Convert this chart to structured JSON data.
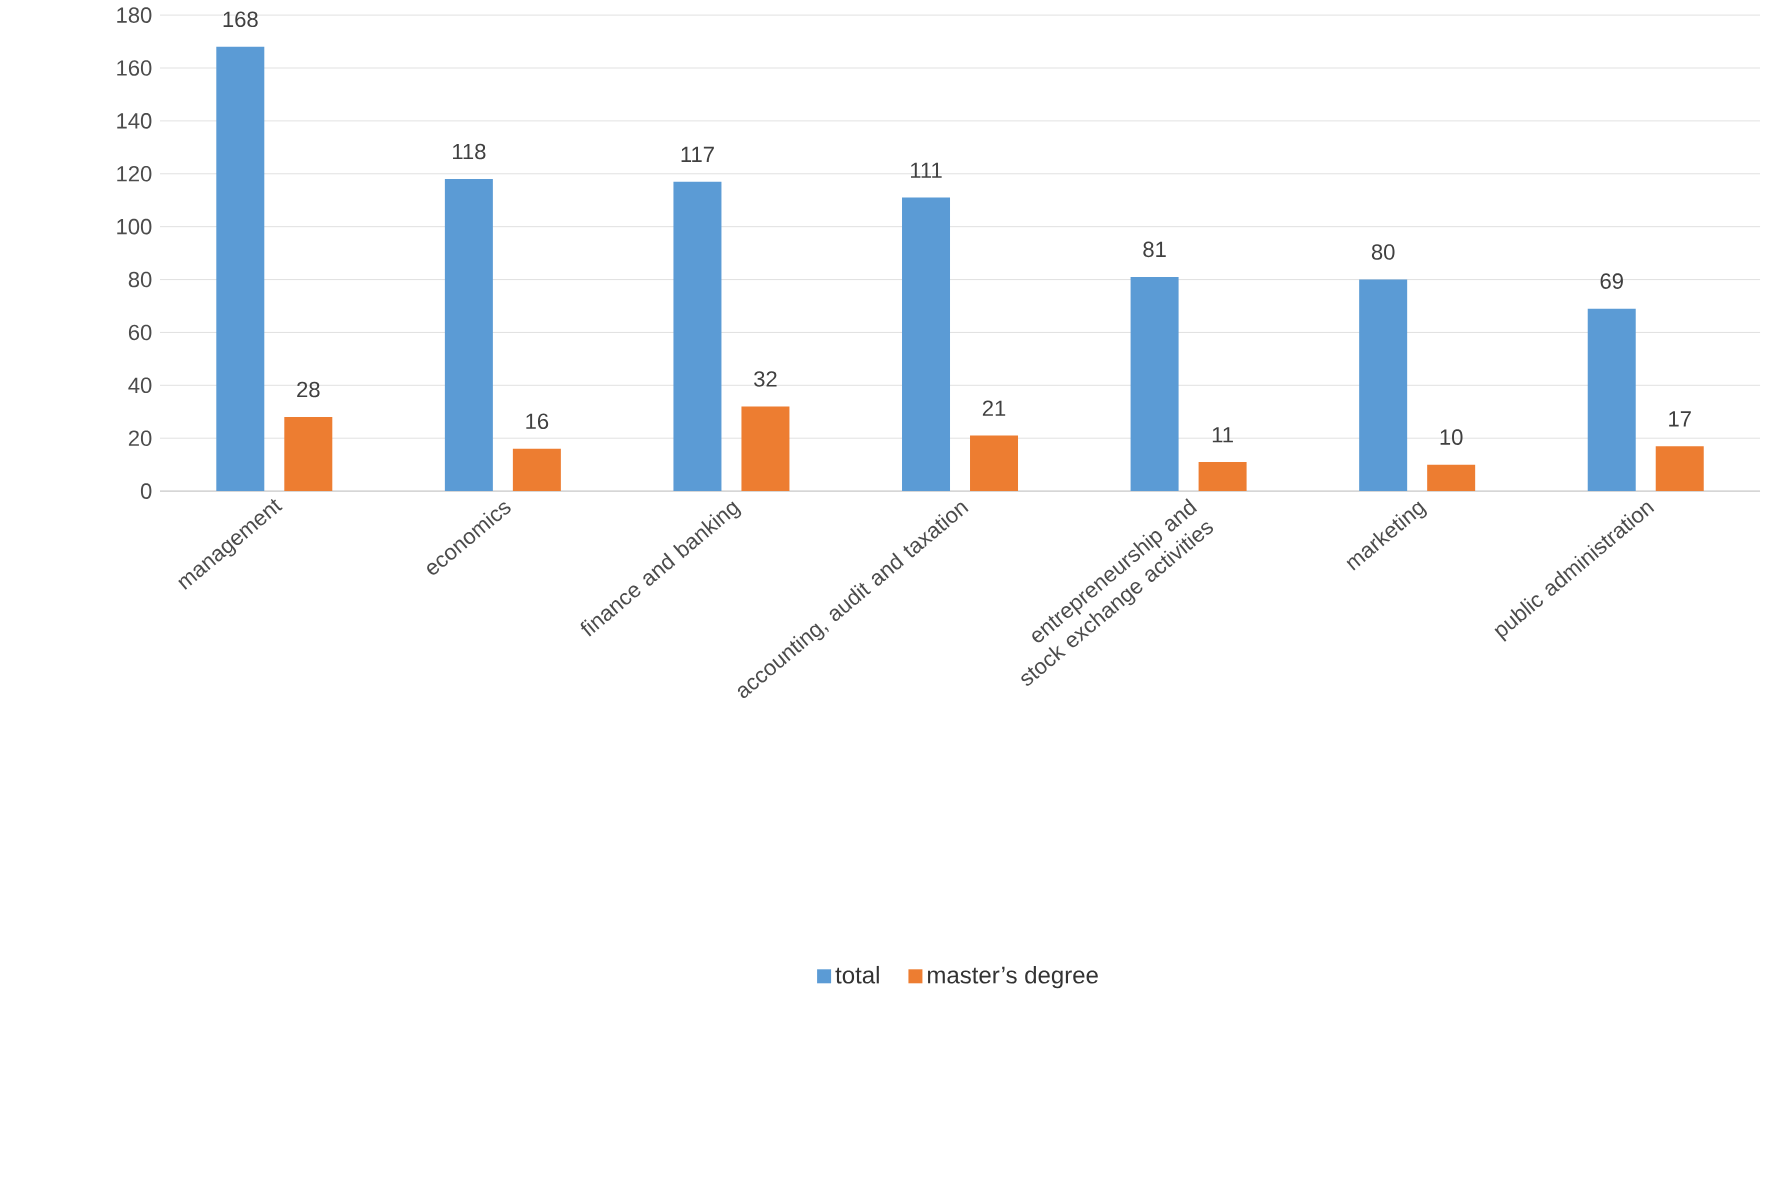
{
  "chart_data": {
    "type": "bar",
    "categories": [
      "management",
      "economics",
      "finance and banking",
      "accounting, audit and taxation",
      "entrepreneurship and stock exchange activities",
      "marketing",
      "public administration"
    ],
    "series": [
      {
        "name": "total",
        "color": "#5b9bd5",
        "values": [
          168,
          118,
          117,
          111,
          81,
          80,
          69
        ]
      },
      {
        "name": "master’s degree",
        "color": "#ed7d31",
        "values": [
          28,
          16,
          32,
          21,
          11,
          10,
          17
        ]
      }
    ],
    "ylim": [
      0,
      180
    ],
    "yticks": [
      0,
      20,
      40,
      60,
      80,
      100,
      120,
      140,
      160,
      180
    ],
    "grid": "y",
    "legend": "bottom",
    "data_labels": true
  }
}
